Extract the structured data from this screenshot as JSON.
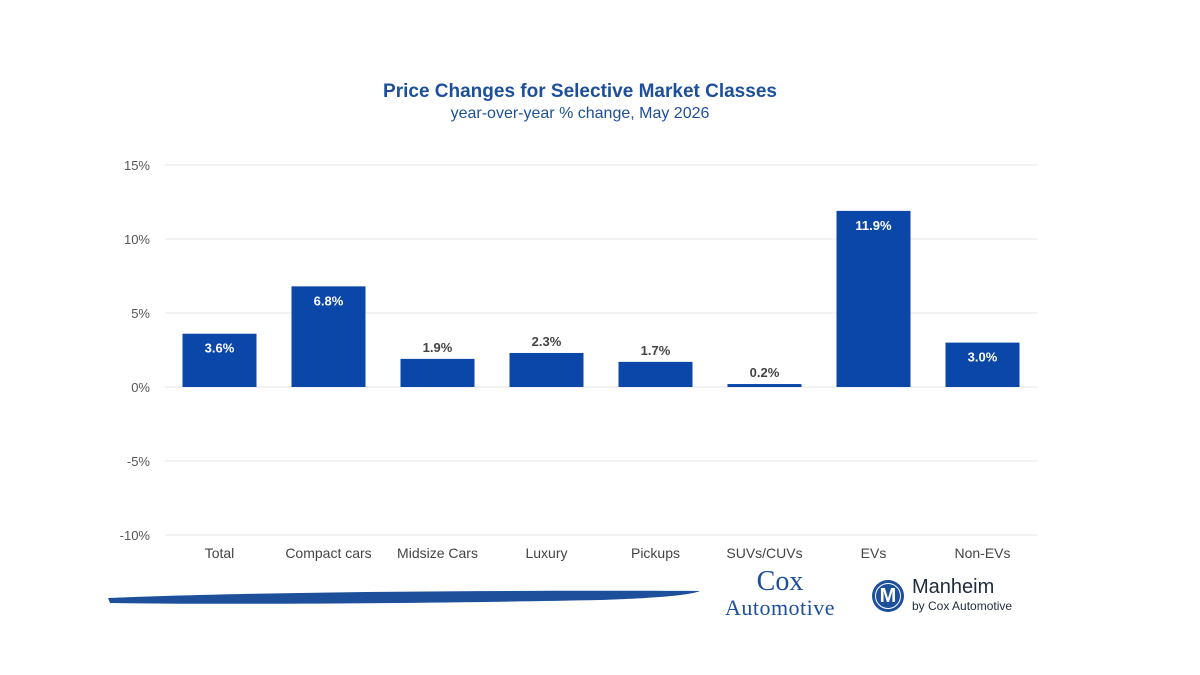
{
  "chart_data": {
    "type": "bar",
    "title": "Price Changes for Selective Market Classes",
    "subtitle": "year-over-year % change, May 2026",
    "categories": [
      "Total",
      "Compact cars",
      "Midsize Cars",
      "Luxury",
      "Pickups",
      "SUVs/CUVs",
      "EVs",
      "Non-EVs"
    ],
    "values": [
      3.6,
      6.8,
      1.9,
      2.3,
      1.7,
      0.2,
      11.9,
      3.0
    ],
    "data_labels": [
      "3.6%",
      "6.8%",
      "1.9%",
      "2.3%",
      "1.7%",
      "0.2%",
      "11.9%",
      "3.0%"
    ],
    "yticks": [
      "15%",
      "10%",
      "5%",
      "0%",
      "-5%",
      "-10%"
    ],
    "ytick_values": [
      15,
      10,
      5,
      0,
      -5,
      -10
    ],
    "ylim": [
      -10,
      15
    ],
    "grid": true,
    "bar_color": "#0b47a8"
  },
  "branding": {
    "cox_top": "Cox",
    "cox_bottom": "Automotive",
    "manheim_name": "Manheim",
    "manheim_by": "by Cox Automotive",
    "manheim_logo_letter": "M",
    "brand_color": "#1d4f9b"
  }
}
